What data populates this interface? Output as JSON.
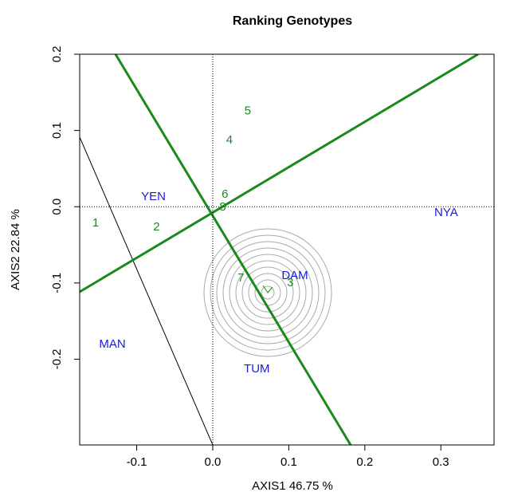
{
  "chart_data": {
    "type": "biplot",
    "title": "Ranking Genotypes",
    "xlabel": "AXIS1 46.75 %",
    "ylabel": "AXIS2 22.84 %",
    "xlim": [
      -0.175,
      0.37
    ],
    "ylim": [
      -0.3125,
      0.2
    ],
    "xticks": [
      -0.1,
      {
        "value": 0,
        "label": "0.0"
      },
      0.1,
      0.2,
      0.3
    ],
    "yticks": [
      -0.2,
      -0.1,
      {
        "value": 0,
        "label": "0.0"
      },
      0.1,
      0.2
    ],
    "genotypes": {
      "color": "#1a8a1a",
      "labels": [
        "1",
        "2",
        "3",
        "4",
        "5",
        "6",
        "7",
        "8"
      ],
      "x": [
        -0.154,
        -0.074,
        0.102,
        0.022,
        0.046,
        0.016,
        0.037,
        0.013
      ],
      "y": [
        -0.022,
        -0.027,
        -0.1,
        0.087,
        0.125,
        0.016,
        -0.094,
        -0.001
      ]
    },
    "environments": {
      "color": "#1a1adc",
      "labels": [
        "YEN",
        "NYA",
        "DAM",
        "MAN",
        "TUM"
      ],
      "x": [
        -0.078,
        0.307,
        0.108,
        -0.132,
        0.058
      ],
      "y": [
        0.013,
        -0.008,
        -0.091,
        -0.181,
        -0.213
      ]
    }
  }
}
